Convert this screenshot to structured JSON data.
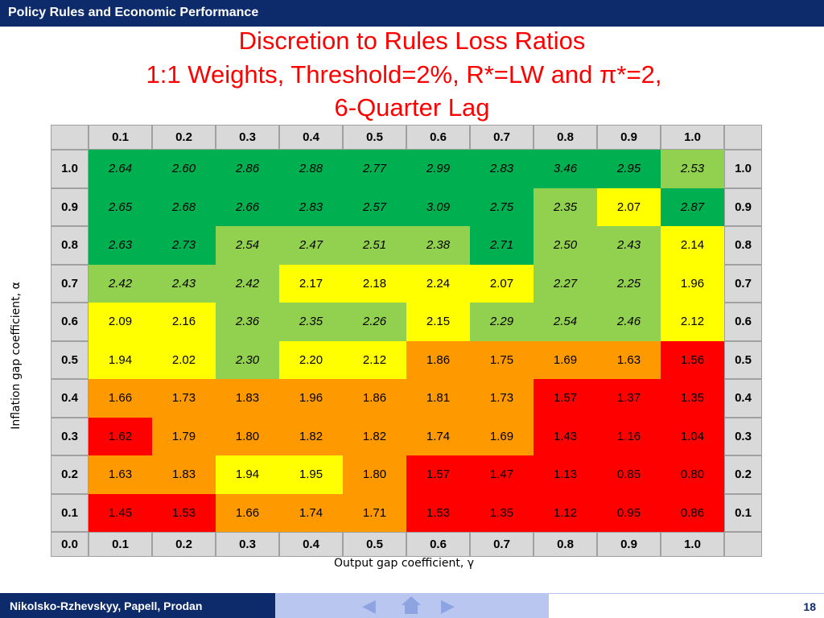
{
  "header": {
    "title": "Policy Rules and Economic Performance"
  },
  "title_lines": [
    "Discretion to Rules Loss Ratios",
    "1:1 Weights, Threshold=2%, R*=LW and π*=2,",
    "6-Quarter Lag"
  ],
  "footer": {
    "authors": "Nikolsko-Rzhevskyy, Papell, Prodan",
    "page": "18"
  },
  "colors": {
    "dark_green": "#00b050",
    "light_green": "#92d050",
    "yellow": "#ffff00",
    "orange": "#ff9900",
    "red": "#ff0000",
    "header_gray": "#d9d9d9",
    "nav_blue": "#0d2b6b"
  },
  "chart_data": {
    "type": "heatmap",
    "xlabel": "Output gap coefficient, γ",
    "ylabel": "Inflation gap coefficient, α",
    "x_ticks": [
      "0.1",
      "0.2",
      "0.3",
      "0.4",
      "0.5",
      "0.6",
      "0.7",
      "0.8",
      "0.9",
      "1.0"
    ],
    "y_ticks": [
      "1.0",
      "0.9",
      "0.8",
      "0.7",
      "0.6",
      "0.5",
      "0.4",
      "0.3",
      "0.2",
      "0.1"
    ],
    "bottom_row_labels": [
      "0.0",
      "0.1",
      "0.2",
      "0.3",
      "0.4",
      "0.5",
      "0.6",
      "0.7",
      "0.8",
      "0.9",
      "1.0"
    ],
    "values": [
      [
        "2.64",
        "2.60",
        "2.86",
        "2.88",
        "2.77",
        "2.99",
        "2.83",
        "3.46",
        "2.95",
        "2.53"
      ],
      [
        "2.65",
        "2.68",
        "2.66",
        "2.83",
        "2.57",
        "3.09",
        "2.75",
        "2.35",
        "2.07",
        "2.87"
      ],
      [
        "2.63",
        "2.73",
        "2.54",
        "2.47",
        "2.51",
        "2.38",
        "2.71",
        "2.50",
        "2.43",
        "2.14"
      ],
      [
        "2.42",
        "2.43",
        "2.42",
        "2.17",
        "2.18",
        "2.24",
        "2.07",
        "2.27",
        "2.25",
        "1.96"
      ],
      [
        "2.09",
        "2.16",
        "2.36",
        "2.35",
        "2.26",
        "2.15",
        "2.29",
        "2.54",
        "2.46",
        "2.12"
      ],
      [
        "1.94",
        "2.02",
        "2.30",
        "2.20",
        "2.12",
        "1.86",
        "1.75",
        "1.69",
        "1.63",
        "1.56"
      ],
      [
        "1.66",
        "1.73",
        "1.83",
        "1.96",
        "1.86",
        "1.81",
        "1.73",
        "1.57",
        "1.37",
        "1.35"
      ],
      [
        "1.62",
        "1.79",
        "1.80",
        "1.82",
        "1.82",
        "1.74",
        "1.69",
        "1.43",
        "1.16",
        "1.04"
      ],
      [
        "1.63",
        "1.83",
        "1.94",
        "1.95",
        "1.80",
        "1.57",
        "1.47",
        "1.13",
        "0.85",
        "0.80"
      ],
      [
        "1.45",
        "1.53",
        "1.66",
        "1.74",
        "1.71",
        "1.53",
        "1.35",
        "1.12",
        "0.95",
        "0.86"
      ]
    ],
    "color_classes": [
      [
        "dg",
        "dg",
        "dg",
        "dg",
        "dg",
        "dg",
        "dg",
        "dg",
        "dg",
        "lg"
      ],
      [
        "dg",
        "dg",
        "dg",
        "dg",
        "dg",
        "dg",
        "dg",
        "lg",
        "y",
        "dg"
      ],
      [
        "dg",
        "dg",
        "lg",
        "lg",
        "lg",
        "lg",
        "dg",
        "lg",
        "lg",
        "y"
      ],
      [
        "lg",
        "lg",
        "lg",
        "y",
        "y",
        "y",
        "y",
        "lg",
        "lg",
        "y"
      ],
      [
        "y",
        "y",
        "lg",
        "lg",
        "lg",
        "y",
        "lg",
        "lg",
        "lg",
        "y"
      ],
      [
        "y",
        "y",
        "lg",
        "y",
        "y",
        "o",
        "o",
        "o",
        "o",
        "r"
      ],
      [
        "o",
        "o",
        "o",
        "o",
        "o",
        "o",
        "o",
        "r",
        "r",
        "r"
      ],
      [
        "r",
        "o",
        "o",
        "o",
        "o",
        "o",
        "o",
        "r",
        "r",
        "r"
      ],
      [
        "o",
        "o",
        "y",
        "y",
        "o",
        "r",
        "r",
        "r",
        "r",
        "r"
      ],
      [
        "r",
        "r",
        "o",
        "o",
        "o",
        "r",
        "r",
        "r",
        "r",
        "r"
      ]
    ],
    "italic": [
      [
        1,
        1,
        1,
        1,
        1,
        1,
        1,
        1,
        1,
        1
      ],
      [
        1,
        1,
        1,
        1,
        1,
        1,
        1,
        1,
        0,
        1
      ],
      [
        1,
        1,
        1,
        1,
        1,
        1,
        1,
        1,
        1,
        0
      ],
      [
        1,
        1,
        1,
        0,
        0,
        0,
        0,
        1,
        1,
        0
      ],
      [
        0,
        0,
        1,
        1,
        1,
        0,
        1,
        1,
        1,
        0
      ],
      [
        0,
        0,
        1,
        0,
        0,
        0,
        0,
        0,
        0,
        0
      ],
      [
        0,
        0,
        0,
        0,
        0,
        0,
        0,
        0,
        0,
        0
      ],
      [
        0,
        0,
        0,
        0,
        0,
        0,
        0,
        0,
        0,
        0
      ],
      [
        0,
        0,
        0,
        0,
        0,
        0,
        0,
        0,
        0,
        0
      ],
      [
        0,
        0,
        0,
        0,
        0,
        0,
        0,
        0,
        0,
        0
      ]
    ]
  }
}
